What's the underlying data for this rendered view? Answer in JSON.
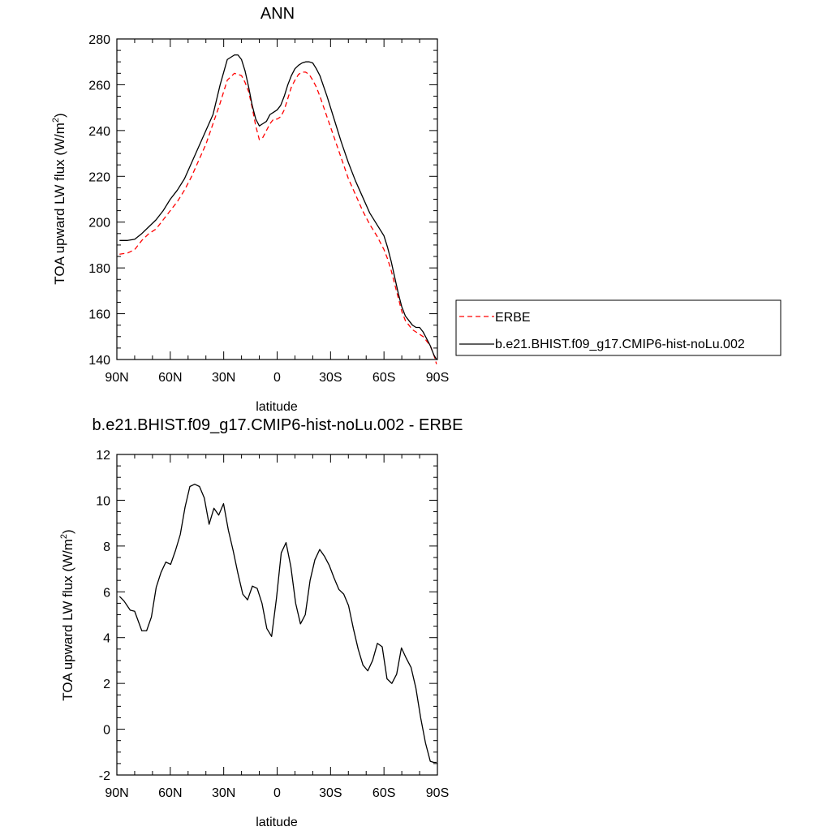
{
  "chart_data": [
    {
      "type": "line",
      "title": "ANN",
      "xlabel": "latitude",
      "ylabel": "TOA upward LW flux (W/m",
      "ylabel_sup": "2",
      "ylabel_tail": ")",
      "xlim": [
        90,
        -90
      ],
      "ylim": [
        140,
        280
      ],
      "xticks": [
        90,
        60,
        30,
        0,
        -30,
        -60,
        -90
      ],
      "xtick_labels": [
        "90N",
        "60N",
        "30N",
        "0",
        "30S",
        "60S",
        "90S"
      ],
      "yticks": [
        140,
        160,
        180,
        200,
        220,
        240,
        260,
        280
      ],
      "legend_position": "right",
      "series": [
        {
          "name": "ERBE",
          "color": "#ff0000",
          "dashed": true,
          "x": [
            88.5,
            84,
            80,
            76,
            72,
            68,
            64,
            60,
            56,
            52,
            48,
            44,
            40,
            36,
            32,
            28,
            24,
            20,
            18,
            16,
            14,
            12,
            10,
            8,
            6,
            4,
            2,
            0,
            -2,
            -4,
            -6,
            -8,
            -10,
            -12,
            -14,
            -16,
            -18,
            -20,
            -22,
            -24,
            -28,
            -32,
            -36,
            -40,
            -44,
            -48,
            -52,
            -56,
            -60,
            -62,
            -64,
            -66,
            -68,
            -70,
            -72,
            -74,
            -76,
            -78,
            -80,
            -82,
            -84,
            -86,
            -88,
            -89.5
          ],
          "y": [
            186,
            186.5,
            188,
            192,
            195,
            197,
            201,
            205,
            209,
            214,
            220,
            227,
            234,
            243,
            252,
            262,
            265,
            264,
            261,
            257,
            250,
            242,
            236,
            237,
            240,
            243,
            245,
            245,
            246,
            249,
            254,
            259,
            262,
            264.5,
            265.5,
            265.5,
            264.5,
            262,
            259,
            255,
            246,
            237,
            228,
            219,
            212,
            205,
            199,
            194,
            188,
            184,
            179,
            173,
            167,
            161,
            157,
            155,
            153,
            152,
            151,
            150,
            148,
            146,
            142,
            138
          ]
        },
        {
          "name": "b.e21.BHIST.f09_g17.CMIP6-hist-noLu.002",
          "color": "#000000",
          "dashed": false,
          "x": [
            88.5,
            84,
            80,
            76,
            72,
            68,
            64,
            60,
            56,
            52,
            48,
            44,
            40,
            36,
            32,
            28,
            24,
            22,
            20,
            18,
            16,
            14,
            12,
            10,
            8,
            6,
            4,
            2,
            0,
            -2,
            -4,
            -6,
            -8,
            -10,
            -12,
            -14,
            -16,
            -18,
            -20,
            -22,
            -24,
            -28,
            -32,
            -36,
            -40,
            -44,
            -48,
            -52,
            -56,
            -60,
            -62,
            -64,
            -66,
            -68,
            -70,
            -72,
            -74,
            -76,
            -78,
            -80,
            -82,
            -84,
            -86,
            -88,
            -89.5
          ],
          "y": [
            192,
            192,
            192.5,
            195,
            198,
            201,
            205,
            210,
            214,
            219,
            226,
            233,
            240,
            247,
            260,
            271,
            273,
            273,
            271,
            266,
            259,
            251,
            245,
            242,
            243,
            244,
            247,
            248,
            249,
            251,
            255,
            260,
            264,
            267,
            268.5,
            269.5,
            270,
            270,
            269.5,
            267,
            264,
            255,
            245,
            235,
            226,
            218,
            211,
            204,
            199,
            194,
            189,
            183,
            176,
            169,
            163,
            159,
            157,
            155,
            154,
            154,
            152,
            149,
            146,
            142,
            140
          ]
        }
      ]
    },
    {
      "type": "line",
      "title": "b.e21.BHIST.f09_g17.CMIP6-hist-noLu.002 - ERBE",
      "xlabel": "latitude",
      "ylabel": "TOA upward LW flux (W/m",
      "ylabel_sup": "2",
      "ylabel_tail": ")",
      "xlim": [
        90,
        -90
      ],
      "ylim": [
        -2,
        12
      ],
      "xticks": [
        90,
        60,
        30,
        0,
        -30,
        -60,
        -90
      ],
      "xtick_labels": [
        "90N",
        "60N",
        "30N",
        "0",
        "30S",
        "60S",
        "90S"
      ],
      "yticks": [
        -2,
        0,
        2,
        4,
        6,
        8,
        10,
        12
      ],
      "series": [
        {
          "color": "#000000",
          "dashed": false,
          "x": [
            88.5,
            86,
            82.5,
            80,
            76,
            73.3,
            70.6,
            67.9,
            65.2,
            62.5,
            59.8,
            57.1,
            54.4,
            51.7,
            49,
            46.3,
            43.6,
            40.9,
            38.2,
            35.5,
            32.8,
            30.1,
            27.4,
            24.7,
            22,
            19.3,
            16.6,
            13.9,
            11.2,
            8.5,
            5.8,
            3.1,
            0.4,
            -2.3,
            -5,
            -7.7,
            -10.4,
            -13.1,
            -15.8,
            -18.5,
            -21.2,
            -23.9,
            -26.6,
            -29.3,
            -32,
            -34.7,
            -37.4,
            -40.1,
            -42.8,
            -45.5,
            -48.2,
            -50.9,
            -53.6,
            -56.3,
            -59,
            -61.7,
            -64.4,
            -67.1,
            -69.8,
            -72.5,
            -75.2,
            -77.9,
            -80.6,
            -83.3,
            -86,
            -88,
            -89.5
          ],
          "y": [
            5.8,
            5.6,
            5.2,
            5.15,
            4.3,
            4.3,
            4.9,
            6.2,
            6.85,
            7.3,
            7.2,
            7.8,
            8.5,
            9.7,
            10.6,
            10.7,
            10.6,
            10.1,
            8.95,
            9.65,
            9.35,
            9.85,
            8.7,
            7.8,
            6.8,
            5.9,
            5.65,
            6.25,
            6.15,
            5.5,
            4.4,
            4.05,
            5.7,
            7.7,
            8.15,
            7.1,
            5.5,
            4.6,
            5.0,
            6.5,
            7.4,
            7.85,
            7.55,
            7.15,
            6.6,
            6.1,
            5.9,
            5.4,
            4.4,
            3.5,
            2.8,
            2.55,
            3.0,
            3.75,
            3.6,
            2.2,
            2.0,
            2.4,
            3.55,
            3.1,
            2.7,
            1.8,
            0.5,
            -0.6,
            -1.4,
            -1.45,
            -1.45
          ]
        }
      ]
    }
  ]
}
